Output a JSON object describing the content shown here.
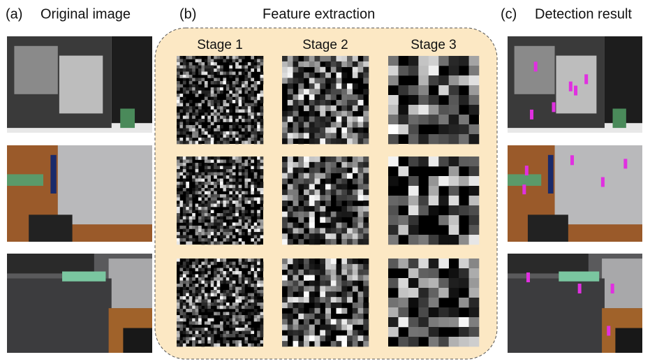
{
  "panels": [
    {
      "label": "(a)",
      "title": "Original image"
    },
    {
      "label": "(b)",
      "title": "Feature extraction",
      "stages": [
        "Stage 1",
        "Stage 2",
        "Stage 3"
      ]
    },
    {
      "label": "(c)",
      "title": "Detection result"
    }
  ]
}
